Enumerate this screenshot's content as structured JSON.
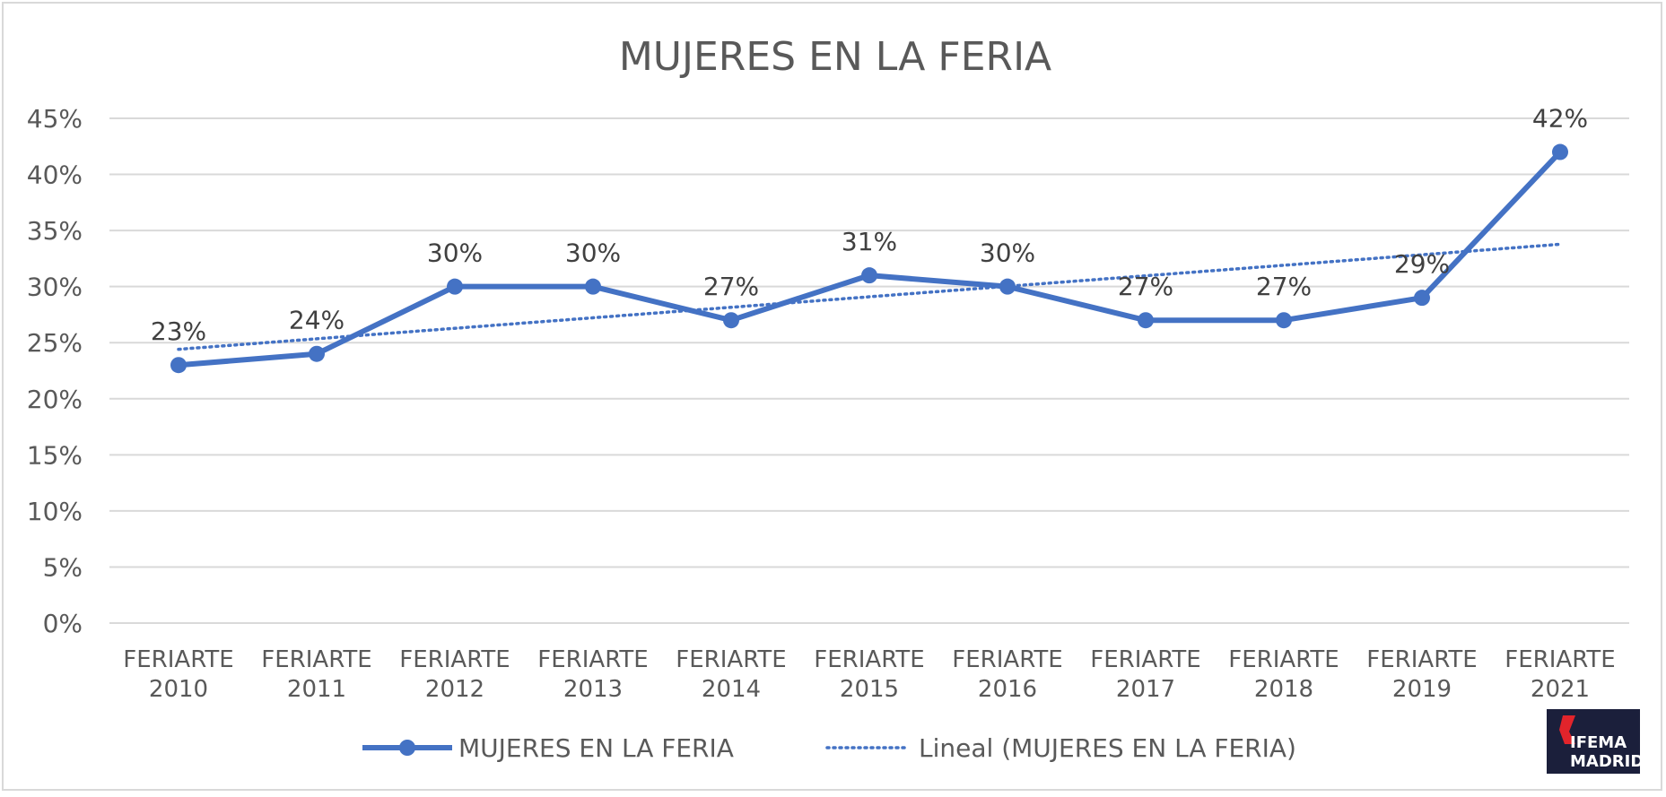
{
  "chart_data": {
    "type": "line",
    "title": "MUJERES EN LA FERIA",
    "categories": [
      [
        "FERIARTE",
        "2010"
      ],
      [
        "FERIARTE",
        "2011"
      ],
      [
        "FERIARTE",
        "2012"
      ],
      [
        "FERIARTE",
        "2013"
      ],
      [
        "FERIARTE",
        "2014"
      ],
      [
        "FERIARTE",
        "2015"
      ],
      [
        "FERIARTE",
        "2016"
      ],
      [
        "FERIARTE",
        "2017"
      ],
      [
        "FERIARTE",
        "2018"
      ],
      [
        "FERIARTE",
        "2019"
      ],
      [
        "FERIARTE",
        "2021"
      ]
    ],
    "series": [
      {
        "name": "MUJERES EN LA FERIA",
        "values": [
          0.23,
          0.24,
          0.3,
          0.3,
          0.27,
          0.31,
          0.3,
          0.27,
          0.27,
          0.29,
          0.42
        ],
        "data_labels": [
          "23%",
          "24%",
          "30%",
          "30%",
          "27%",
          "31%",
          "30%",
          "27%",
          "27%",
          "29%",
          "42%"
        ],
        "color": "#4472c4",
        "marker": "circle"
      },
      {
        "name": "Lineal (MUJERES EN LA FERIA)",
        "type": "linear-trendline",
        "color": "#4472c4",
        "style": "dotted"
      }
    ],
    "yticks": [
      "0%",
      "5%",
      "10%",
      "15%",
      "20%",
      "25%",
      "30%",
      "35%",
      "40%",
      "45%"
    ],
    "ylim": [
      0,
      0.45
    ],
    "grid": true,
    "legend": "bottom"
  },
  "logo": {
    "line1": "IFEMA",
    "line2": "MADRID",
    "background": "#1b1f3b",
    "accent": "#e2242b"
  }
}
